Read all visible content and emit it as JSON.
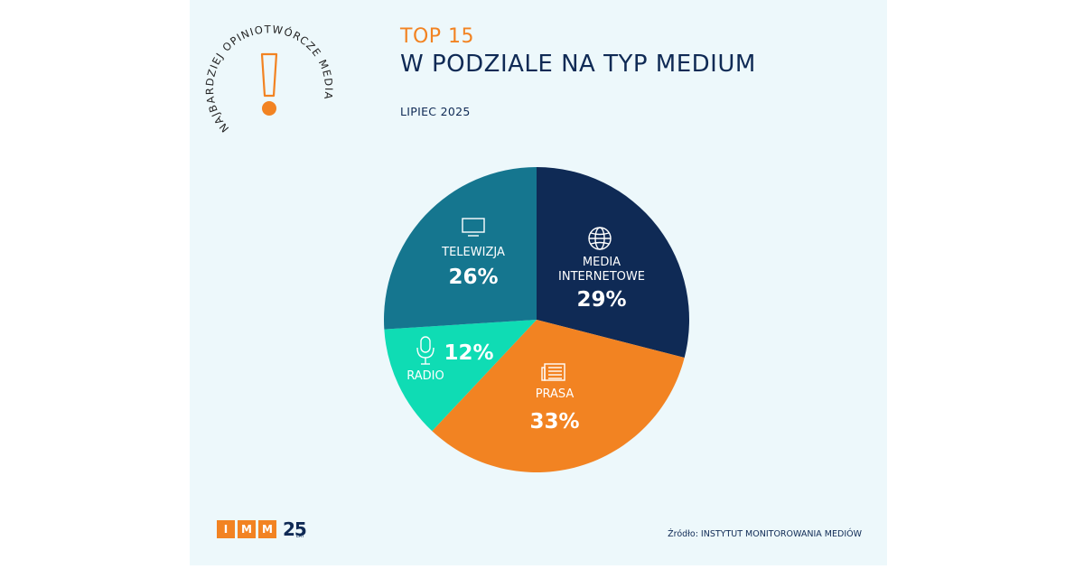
{
  "header": {
    "top_label": "TOP 15",
    "title": "W PODZIALE NA TYP MEDIUM",
    "date": "LIPIEC 2025"
  },
  "badge": {
    "circular_text": "NAJBARDZIEJ OPINIOTWÓRCZE MEDIA",
    "icon": "exclamation-icon"
  },
  "chart_data": {
    "type": "pie",
    "slices": [
      {
        "label": "MEDIA INTERNETOWE",
        "value": 29,
        "display": "29%",
        "color": "#0f2a55",
        "icon": "globe-icon"
      },
      {
        "label": "PRASA",
        "value": 33,
        "display": "33%",
        "color": "#f28322",
        "icon": "newspaper-icon"
      },
      {
        "label": "RADIO",
        "value": 12,
        "display": "12%",
        "color": "#0fdcb4",
        "icon": "microphone-icon"
      },
      {
        "label": "TELEWIZJA",
        "value": 26,
        "display": "26%",
        "color": "#15768f",
        "icon": "tv-icon"
      }
    ]
  },
  "footer": {
    "logo_letters": [
      "I",
      "M",
      "M"
    ],
    "anniversary": "25",
    "anniversary_sub": "LAT",
    "source": "Źródło: INSTYTUT MONITOROWANIA MEDIÓW"
  },
  "colors": {
    "accent_orange": "#f28322",
    "navy": "#0f2a55",
    "background": "#edf8fb"
  }
}
